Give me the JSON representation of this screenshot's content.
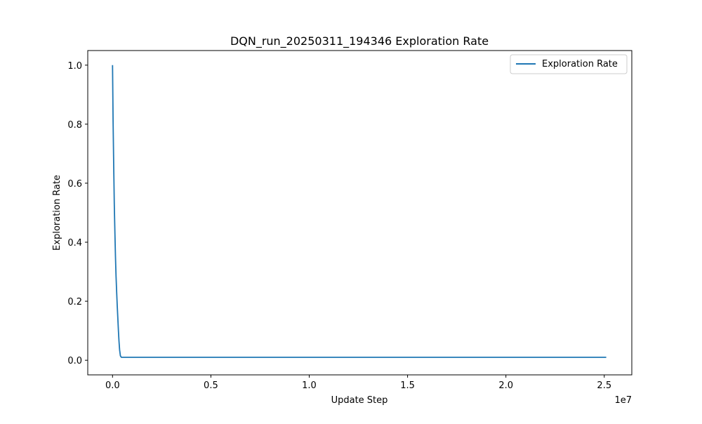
{
  "chart_data": {
    "type": "line",
    "title": "DQN_run_20250311_194346 Exploration Rate",
    "xlabel": "Update Step",
    "ylabel": "Exploration Rate",
    "x_offset_label": "1e7",
    "xlim": [
      -1260000,
      26400000
    ],
    "ylim": [
      -0.0495,
      1.0495
    ],
    "x_ticks": [
      0,
      5000000,
      10000000,
      15000000,
      20000000,
      25000000
    ],
    "x_tick_labels": [
      "0.0",
      "0.5",
      "1.0",
      "1.5",
      "2.0",
      "2.5"
    ],
    "y_ticks": [
      0.0,
      0.2,
      0.4,
      0.6,
      0.8,
      1.0
    ],
    "y_tick_labels": [
      "0.0",
      "0.2",
      "0.4",
      "0.6",
      "0.8",
      "1.0"
    ],
    "grid": false,
    "legend_position": "upper right",
    "series": [
      {
        "name": "Exploration Rate",
        "color": "#1f77b4",
        "x": [
          0,
          30000,
          60000,
          90000,
          120000,
          150000,
          180000,
          210000,
          240000,
          270000,
          300000,
          330000,
          360000,
          400000,
          450000,
          25100000
        ],
        "y": [
          1.0,
          0.81,
          0.655,
          0.53,
          0.43,
          0.35,
          0.285,
          0.23,
          0.185,
          0.14,
          0.1,
          0.065,
          0.035,
          0.015,
          0.01,
          0.01
        ]
      }
    ]
  }
}
